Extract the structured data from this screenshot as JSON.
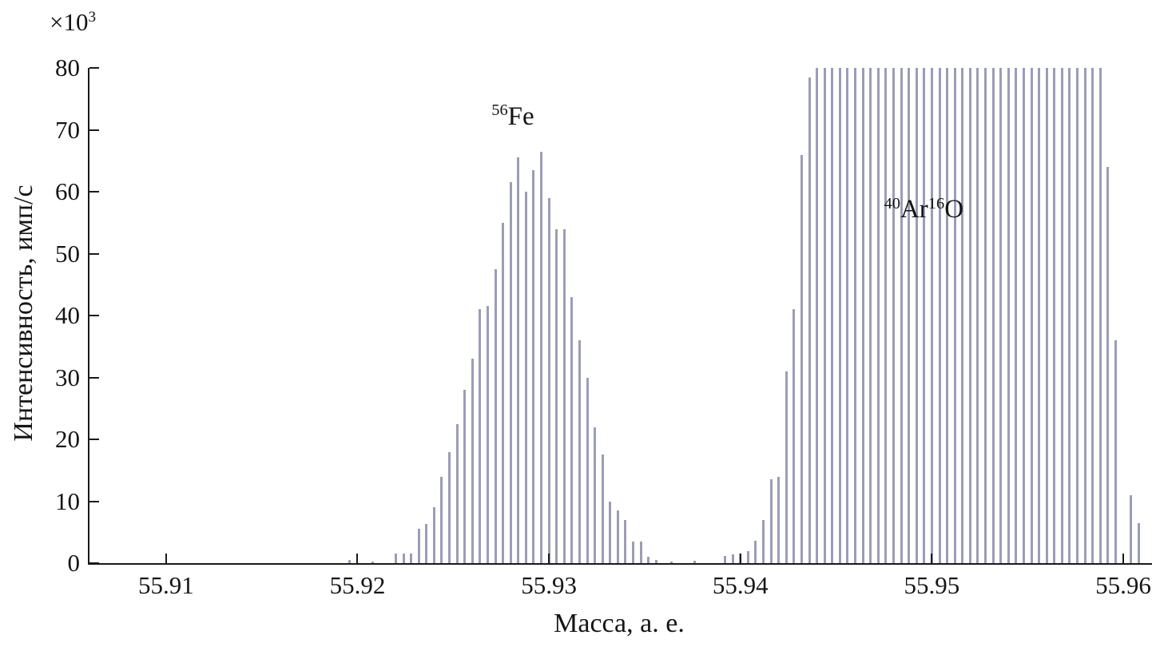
{
  "figure": {
    "background": "#ffffff"
  },
  "chart_data": {
    "type": "bar",
    "subtype": "mass-spectrum-sticks",
    "title": "",
    "xlabel": "Масса, а. е.",
    "ylabel": "Интенсивность, имп/с",
    "y_multiplier_base": "×10",
    "y_multiplier_exp": "3",
    "xlim": [
      55.906,
      55.9615
    ],
    "ylim": [
      0,
      80
    ],
    "grid": false,
    "legend": false,
    "bar_color": "#9b9db7",
    "axis_color": "#1a1a1a",
    "x_ticks": [
      {
        "value": 55.91,
        "label": "55.91"
      },
      {
        "value": 55.92,
        "label": "55.92"
      },
      {
        "value": 55.93,
        "label": "55.93"
      },
      {
        "value": 55.94,
        "label": "55.94"
      },
      {
        "value": 55.95,
        "label": "55.95"
      },
      {
        "value": 55.96,
        "label": "55.96"
      }
    ],
    "y_ticks": [
      {
        "value": 0,
        "label": "0"
      },
      {
        "value": 10,
        "label": "10"
      },
      {
        "value": 20,
        "label": "20"
      },
      {
        "value": 30,
        "label": "30"
      },
      {
        "value": 40,
        "label": "40"
      },
      {
        "value": 50,
        "label": "50"
      },
      {
        "value": 60,
        "label": "60"
      },
      {
        "value": 70,
        "label": "70"
      },
      {
        "value": 80,
        "label": "80"
      }
    ],
    "annotations": [
      {
        "name": "fe-peak-label",
        "x": 55.927,
        "y": 74.5,
        "parts": [
          {
            "sup": "56"
          },
          {
            "text": "Fe"
          }
        ]
      },
      {
        "name": "aro-peak-label",
        "x": 55.9475,
        "y": 59.5,
        "parts": [
          {
            "sup": "40"
          },
          {
            "text": "Ar"
          },
          {
            "sup": "16"
          },
          {
            "text": "O"
          }
        ]
      }
    ],
    "clip_value": 80,
    "points": [
      [
        55.9196,
        0.5
      ],
      [
        55.9208,
        0.3
      ],
      [
        55.922,
        1.5
      ],
      [
        55.9224,
        1.6
      ],
      [
        55.9228,
        1.5
      ],
      [
        55.9232,
        5.5
      ],
      [
        55.9236,
        6.3
      ],
      [
        55.924,
        9.0
      ],
      [
        55.9244,
        14.0
      ],
      [
        55.9248,
        18.0
      ],
      [
        55.9252,
        22.5
      ],
      [
        55.9256,
        28.0
      ],
      [
        55.926,
        33.0
      ],
      [
        55.9264,
        41.0
      ],
      [
        55.9268,
        41.5
      ],
      [
        55.9272,
        47.5
      ],
      [
        55.9276,
        55.0
      ],
      [
        55.928,
        61.5
      ],
      [
        55.9284,
        65.5
      ],
      [
        55.9288,
        60.0
      ],
      [
        55.9292,
        63.5
      ],
      [
        55.9296,
        66.5
      ],
      [
        55.93,
        59.0
      ],
      [
        55.9304,
        54.0
      ],
      [
        55.9308,
        54.0
      ],
      [
        55.9312,
        43.0
      ],
      [
        55.9316,
        36.0
      ],
      [
        55.932,
        30.0
      ],
      [
        55.9324,
        22.0
      ],
      [
        55.9328,
        17.5
      ],
      [
        55.9332,
        10.0
      ],
      [
        55.9336,
        8.5
      ],
      [
        55.934,
        7.0
      ],
      [
        55.9344,
        3.5
      ],
      [
        55.9348,
        3.5
      ],
      [
        55.9352,
        1.0
      ],
      [
        55.9356,
        0.5
      ],
      [
        55.9364,
        0.3
      ],
      [
        55.9376,
        0.4
      ],
      [
        55.9392,
        1.2
      ],
      [
        55.9396,
        1.4
      ],
      [
        55.94,
        1.5
      ],
      [
        55.9404,
        2.0
      ],
      [
        55.9408,
        3.6
      ],
      [
        55.9412,
        7.0
      ],
      [
        55.9416,
        13.5
      ],
      [
        55.942,
        14.0
      ],
      [
        55.9424,
        31.0
      ],
      [
        55.9428,
        41.0
      ],
      [
        55.9432,
        66.0
      ],
      [
        55.9436,
        78.5
      ],
      [
        55.944,
        80
      ],
      [
        55.9444,
        80
      ],
      [
        55.9448,
        80
      ],
      [
        55.9452,
        80
      ],
      [
        55.9456,
        80
      ],
      [
        55.946,
        80
      ],
      [
        55.9464,
        80
      ],
      [
        55.9468,
        80
      ],
      [
        55.9472,
        80
      ],
      [
        55.9476,
        80
      ],
      [
        55.948,
        80
      ],
      [
        55.9484,
        80
      ],
      [
        55.9488,
        80
      ],
      [
        55.9492,
        80
      ],
      [
        55.9496,
        80
      ],
      [
        55.95,
        80
      ],
      [
        55.9504,
        80
      ],
      [
        55.9508,
        80
      ],
      [
        55.9512,
        80
      ],
      [
        55.9516,
        80
      ],
      [
        55.952,
        80
      ],
      [
        55.9524,
        80
      ],
      [
        55.9528,
        80
      ],
      [
        55.9532,
        80
      ],
      [
        55.9536,
        80
      ],
      [
        55.954,
        80
      ],
      [
        55.9544,
        80
      ],
      [
        55.9548,
        80
      ],
      [
        55.9552,
        80
      ],
      [
        55.9556,
        80
      ],
      [
        55.956,
        80
      ],
      [
        55.9564,
        80
      ],
      [
        55.9568,
        80
      ],
      [
        55.9572,
        80
      ],
      [
        55.9576,
        80
      ],
      [
        55.958,
        80
      ],
      [
        55.9584,
        80
      ],
      [
        55.9588,
        80
      ],
      [
        55.9592,
        64.0
      ],
      [
        55.9596,
        36.0
      ],
      [
        55.9604,
        11.0
      ],
      [
        55.9608,
        6.5
      ]
    ]
  }
}
